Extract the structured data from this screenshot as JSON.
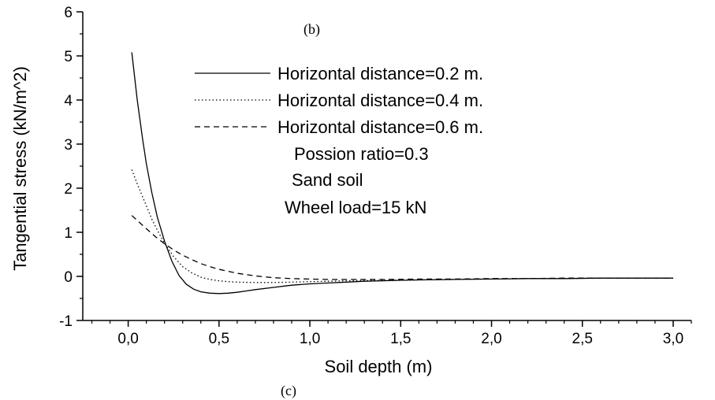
{
  "chart_data": {
    "type": "line",
    "xlabel": "Soil depth (m)",
    "ylabel": "Tangential stress (kN/m^2)",
    "xlim": [
      -0.25,
      3.1
    ],
    "ylim": [
      -1,
      6
    ],
    "xticks": [
      0.0,
      0.5,
      1.0,
      1.5,
      2.0,
      2.5,
      3.0
    ],
    "xtick_labels": [
      "0,0",
      "0,5",
      "1,0",
      "1,5",
      "2,0",
      "2,5",
      "3,0"
    ],
    "yticks": [
      -1,
      0,
      1,
      2,
      3,
      4,
      5,
      6
    ],
    "ytick_labels": [
      "-1",
      "0",
      "1",
      "2",
      "3",
      "4",
      "5",
      "6"
    ],
    "x_minor_step": 0.1,
    "y_minor_step": 0.5,
    "grid": false,
    "legend_position": "top-center",
    "series": [
      {
        "name": "Horizontal distance=0.2 m.",
        "style": "solid",
        "x": [
          0.02,
          0.05,
          0.08,
          0.1,
          0.13,
          0.16,
          0.2,
          0.24,
          0.28,
          0.32,
          0.36,
          0.4,
          0.45,
          0.5,
          0.55,
          0.6,
          0.65,
          0.7,
          0.8,
          0.9,
          1.0,
          1.1,
          1.2,
          1.3,
          1.4,
          1.5,
          1.6,
          1.8,
          2.0,
          2.2,
          2.4,
          2.6,
          2.8,
          3.0
        ],
        "y": [
          5.08,
          4.0,
          3.1,
          2.55,
          1.9,
          1.35,
          0.8,
          0.35,
          0.02,
          -0.18,
          -0.29,
          -0.35,
          -0.38,
          -0.39,
          -0.38,
          -0.36,
          -0.33,
          -0.3,
          -0.25,
          -0.2,
          -0.17,
          -0.15,
          -0.13,
          -0.11,
          -0.1,
          -0.09,
          -0.08,
          -0.07,
          -0.06,
          -0.05,
          -0.05,
          -0.04,
          -0.04,
          -0.04
        ]
      },
      {
        "name": "Horizontal distance=0.4 m.",
        "style": "dotted",
        "x": [
          0.02,
          0.05,
          0.08,
          0.1,
          0.13,
          0.16,
          0.2,
          0.25,
          0.3,
          0.35,
          0.4,
          0.45,
          0.5,
          0.55,
          0.6,
          0.7,
          0.8,
          0.9,
          1.0,
          1.1,
          1.2,
          1.4,
          1.6,
          1.8,
          2.0,
          2.2,
          2.4,
          2.6,
          2.8,
          3.0
        ],
        "y": [
          2.42,
          2.1,
          1.8,
          1.6,
          1.3,
          1.05,
          0.75,
          0.45,
          0.22,
          0.08,
          -0.02,
          -0.07,
          -0.1,
          -0.12,
          -0.13,
          -0.14,
          -0.14,
          -0.13,
          -0.12,
          -0.11,
          -0.1,
          -0.09,
          -0.08,
          -0.07,
          -0.06,
          -0.05,
          -0.05,
          -0.04,
          -0.04,
          -0.04
        ]
      },
      {
        "name": "Horizontal distance=0.6 m.",
        "style": "dashed",
        "x": [
          0.02,
          0.05,
          0.1,
          0.15,
          0.2,
          0.25,
          0.3,
          0.35,
          0.4,
          0.45,
          0.5,
          0.6,
          0.7,
          0.8,
          0.9,
          1.0,
          1.1,
          1.2,
          1.4,
          1.6,
          1.8,
          2.0,
          2.2,
          2.4,
          2.6,
          2.8,
          3.0
        ],
        "y": [
          1.38,
          1.27,
          1.08,
          0.9,
          0.74,
          0.6,
          0.48,
          0.38,
          0.29,
          0.22,
          0.16,
          0.07,
          0.01,
          -0.03,
          -0.05,
          -0.06,
          -0.07,
          -0.07,
          -0.07,
          -0.06,
          -0.06,
          -0.05,
          -0.05,
          -0.04,
          -0.04,
          -0.04,
          -0.04
        ]
      }
    ],
    "annotations": [
      "Possion ratio=0.3",
      "Sand soil",
      "Wheel load=15 kN",
      "(b)",
      "(c)"
    ]
  }
}
